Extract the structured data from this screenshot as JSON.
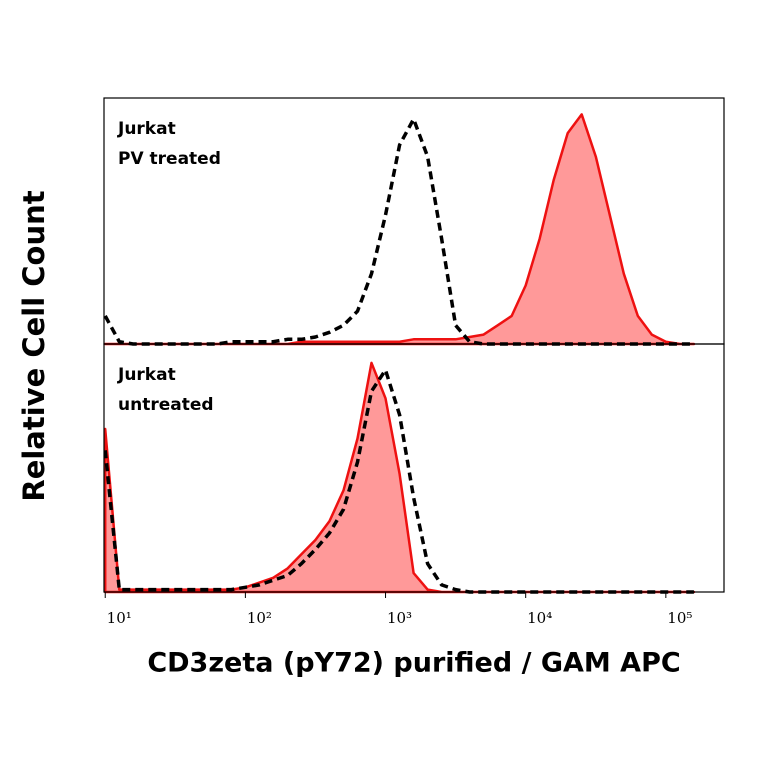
{
  "chart_data": {
    "type": "line",
    "xlabel": "CD3zeta (pY72) purified / GAM APC",
    "ylabel": "Relative Cell Count",
    "log_x": true,
    "xlim": [
      9.8,
      260000
    ],
    "xticks": [
      {
        "value": 10,
        "label": "10¹"
      },
      {
        "value": 100,
        "label": "10²"
      },
      {
        "value": 1000,
        "label": "10³"
      },
      {
        "value": 10000,
        "label": "10⁴"
      },
      {
        "value": 100000,
        "label": "10⁵"
      }
    ],
    "ylim": [
      0,
      105
    ],
    "x": [
      10,
      12.6,
      15.8,
      20,
      25.1,
      31.6,
      39.8,
      50.1,
      63.1,
      79.4,
      100,
      126,
      158,
      200,
      251,
      316,
      398,
      501,
      631,
      794,
      1000,
      1259,
      1585,
      1995,
      2512,
      3162,
      3981,
      5012,
      6310,
      7943,
      10000,
      12589,
      15849,
      19953,
      25119,
      31623,
      39811,
      50119,
      63096,
      79433,
      100000,
      125893,
      158489
    ],
    "panels": [
      {
        "annotation": [
          "Jurkat",
          "PV treated"
        ],
        "series": [
          {
            "color": "#ee1111",
            "fill": "#ff9999",
            "dashed": false,
            "values": [
              0,
              0,
              0,
              0,
              0,
              0,
              0,
              0,
              0,
              0,
              0,
              0,
              0,
              0,
              1,
              1,
              1,
              1,
              1,
              1,
              1,
              1,
              2,
              2,
              2,
              2,
              3,
              4,
              8,
              12,
              25,
              45,
              70,
              90,
              98,
              80,
              55,
              30,
              12,
              4,
              1,
              0,
              0
            ]
          },
          {
            "color": "#000000",
            "fill": null,
            "dashed": true,
            "values": [
              12,
              1,
              0,
              0,
              0,
              0,
              0,
              0,
              0,
              1,
              1,
              1,
              1,
              2,
              2,
              3,
              5,
              8,
              14,
              30,
              55,
              85,
              96,
              80,
              45,
              8,
              1,
              0,
              0,
              0,
              0,
              0,
              0,
              0,
              0,
              0,
              0,
              0,
              0,
              0,
              0,
              0,
              0
            ]
          }
        ]
      },
      {
        "annotation": [
          "Jurkat",
          "untreated"
        ],
        "series": [
          {
            "color": "#ee1111",
            "fill": "#ff9999",
            "dashed": false,
            "values": [
              69,
              1,
              1,
              1,
              1,
              1,
              1,
              1,
              1,
              1,
              2,
              4,
              6,
              10,
              16,
              22,
              30,
              43,
              65,
              97,
              82,
              50,
              8,
              1,
              0,
              0,
              0,
              0,
              0,
              0,
              0,
              0,
              0,
              0,
              0,
              0,
              0,
              0,
              0,
              0,
              0,
              0,
              0
            ]
          },
          {
            "color": "#000000",
            "fill": null,
            "dashed": true,
            "values": [
              60,
              1,
              1,
              1,
              1,
              1,
              1,
              1,
              1,
              1,
              2,
              3,
              5,
              7,
              12,
              18,
              25,
              35,
              55,
              85,
              94,
              75,
              40,
              12,
              3,
              1,
              0,
              0,
              0,
              0,
              0,
              0,
              0,
              0,
              0,
              0,
              0,
              0,
              0,
              0,
              0,
              0,
              0
            ]
          }
        ]
      }
    ]
  }
}
